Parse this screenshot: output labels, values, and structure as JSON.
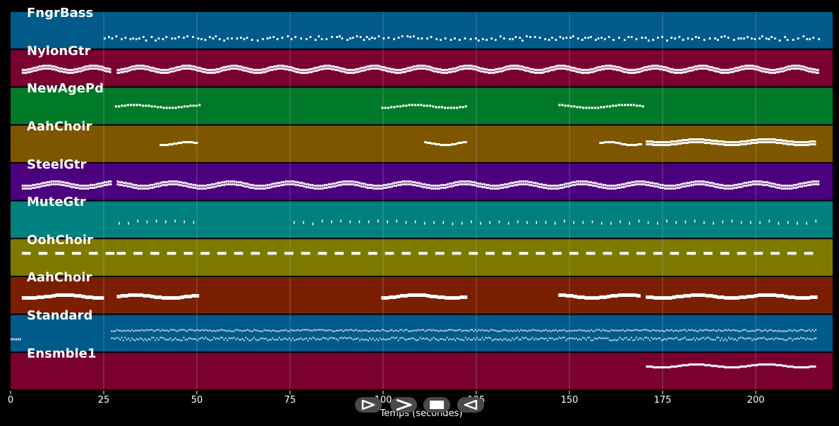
{
  "tracks": [
    {
      "name": "FngrBass",
      "color": "#005a8a"
    },
    {
      "name": "NylonGtr",
      "color": "#7a0030"
    },
    {
      "name": "NewAgePd",
      "color": "#007a28"
    },
    {
      "name": "AahChoir",
      "color": "#7e5600"
    },
    {
      "name": "SteelGtr",
      "color": "#4b007e"
    },
    {
      "name": "MuteGtr",
      "color": "#00807e"
    },
    {
      "name": "OohChoir",
      "color": "#7e7a00"
    },
    {
      "name": "AahChoir",
      "color": "#7a2000"
    },
    {
      "name": "Standard",
      "color": "#005a8a"
    },
    {
      "name": "Ensmble1",
      "color": "#7a0030"
    }
  ],
  "axis": {
    "ticks": [
      "0",
      "25",
      "50",
      "75",
      "100",
      "125",
      "150",
      "175",
      "200"
    ],
    "label": "Temps (secondes)"
  },
  "controls": [
    {
      "id": "play",
      "icon": "play-outline-icon"
    },
    {
      "id": "forward",
      "icon": "fast-forward-icon"
    },
    {
      "id": "stop",
      "icon": "stop-icon"
    },
    {
      "id": "rewind",
      "icon": "rewind-icon"
    }
  ],
  "colors": {
    "background": "#000000",
    "note": "#ffffff",
    "grid": "#8aa0b0"
  }
}
